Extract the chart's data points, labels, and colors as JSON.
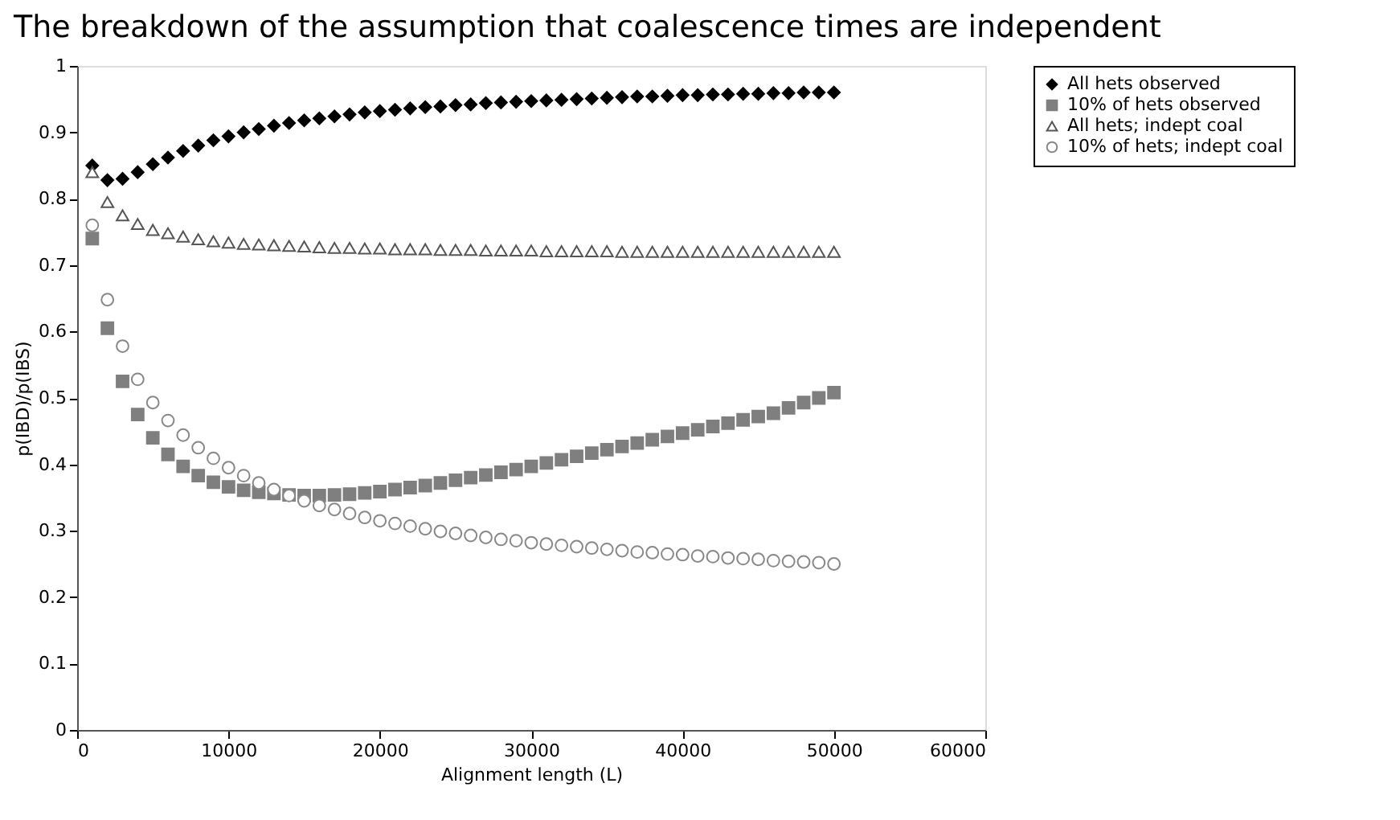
{
  "chart_data": {
    "type": "scatter",
    "title": "The breakdown of the assumption that coalescence times are independent",
    "xlabel": "Alignment length (L)",
    "ylabel": "p(IBD)/p(IBS)",
    "x": [
      1000,
      2000,
      3000,
      4000,
      5000,
      6000,
      7000,
      8000,
      9000,
      10000,
      11000,
      12000,
      13000,
      14000,
      15000,
      16000,
      17000,
      18000,
      19000,
      20000,
      21000,
      22000,
      23000,
      24000,
      25000,
      26000,
      27000,
      28000,
      29000,
      30000,
      31000,
      32000,
      33000,
      34000,
      35000,
      36000,
      37000,
      38000,
      39000,
      40000,
      41000,
      42000,
      43000,
      44000,
      45000,
      46000,
      47000,
      48000,
      49000,
      50000
    ],
    "series": [
      {
        "name": "All hets observed",
        "color": "#000000",
        "marker": "diamond",
        "values": [
          0.85,
          0.828,
          0.83,
          0.84,
          0.852,
          0.862,
          0.872,
          0.88,
          0.888,
          0.894,
          0.9,
          0.905,
          0.91,
          0.914,
          0.918,
          0.921,
          0.924,
          0.927,
          0.93,
          0.932,
          0.934,
          0.936,
          0.938,
          0.939,
          0.941,
          0.942,
          0.944,
          0.945,
          0.946,
          0.947,
          0.948,
          0.949,
          0.95,
          0.951,
          0.952,
          0.953,
          0.954,
          0.954,
          0.955,
          0.956,
          0.956,
          0.957,
          0.957,
          0.958,
          0.958,
          0.959,
          0.959,
          0.96,
          0.96,
          0.96
        ]
      },
      {
        "name": "10% of hets observed",
        "color": "#7f7f7f",
        "marker": "square",
        "values": [
          0.74,
          0.605,
          0.525,
          0.475,
          0.44,
          0.415,
          0.397,
          0.383,
          0.373,
          0.366,
          0.361,
          0.358,
          0.356,
          0.354,
          0.353,
          0.353,
          0.354,
          0.355,
          0.357,
          0.359,
          0.362,
          0.365,
          0.368,
          0.372,
          0.376,
          0.38,
          0.384,
          0.388,
          0.392,
          0.397,
          0.402,
          0.407,
          0.412,
          0.417,
          0.422,
          0.427,
          0.432,
          0.437,
          0.442,
          0.447,
          0.452,
          0.457,
          0.462,
          0.467,
          0.472,
          0.477,
          0.485,
          0.493,
          0.5,
          0.508
        ]
      },
      {
        "name": "All hets; indept coal",
        "color": "#555555",
        "marker": "triangle",
        "values": [
          0.84,
          0.795,
          0.775,
          0.762,
          0.753,
          0.748,
          0.743,
          0.739,
          0.736,
          0.734,
          0.732,
          0.731,
          0.73,
          0.729,
          0.728,
          0.727,
          0.726,
          0.726,
          0.725,
          0.725,
          0.724,
          0.724,
          0.724,
          0.723,
          0.723,
          0.723,
          0.722,
          0.722,
          0.722,
          0.722,
          0.721,
          0.721,
          0.721,
          0.721,
          0.721,
          0.72,
          0.72,
          0.72,
          0.72,
          0.72,
          0.72,
          0.72,
          0.72,
          0.72,
          0.72,
          0.72,
          0.72,
          0.72,
          0.72,
          0.72
        ]
      },
      {
        "name": "10% of hets; indept coal",
        "color": "#888888",
        "marker": "circle",
        "values": [
          0.76,
          0.648,
          0.578,
          0.528,
          0.493,
          0.466,
          0.444,
          0.425,
          0.409,
          0.395,
          0.383,
          0.372,
          0.362,
          0.353,
          0.345,
          0.338,
          0.332,
          0.326,
          0.32,
          0.315,
          0.311,
          0.307,
          0.303,
          0.299,
          0.296,
          0.293,
          0.29,
          0.287,
          0.285,
          0.282,
          0.28,
          0.278,
          0.276,
          0.274,
          0.272,
          0.27,
          0.268,
          0.267,
          0.265,
          0.264,
          0.262,
          0.261,
          0.259,
          0.258,
          0.257,
          0.255,
          0.254,
          0.253,
          0.252,
          0.25
        ]
      }
    ],
    "xlim": [
      0,
      60000
    ],
    "xticks": [
      0,
      10000,
      20000,
      30000,
      40000,
      50000,
      60000
    ],
    "ylim": [
      0,
      1
    ],
    "yticks": [
      0,
      0.1,
      0.2,
      0.3,
      0.4,
      0.5,
      0.6,
      0.7,
      0.8,
      0.9,
      1
    ],
    "grid": false,
    "legend": "right"
  }
}
